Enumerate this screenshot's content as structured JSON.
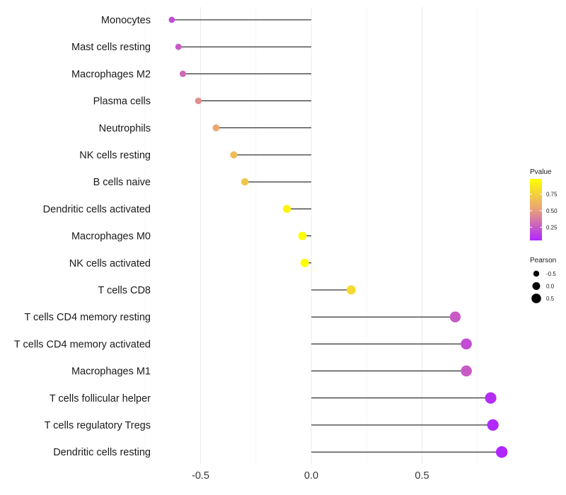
{
  "chart_data": {
    "type": "lollipop",
    "title": "",
    "xlabel": "",
    "ylabel": "",
    "xlim": [
      -0.72,
      0.9
    ],
    "xticks": [
      -0.5,
      0.0,
      0.5
    ],
    "xtick_labels": [
      "-0.5",
      "0.0",
      "0.5"
    ],
    "grid": true,
    "categories": [
      "Monocytes",
      "Mast cells resting",
      "Macrophages M2",
      "Plasma cells",
      "Neutrophils",
      "NK cells resting",
      "B cells naive",
      "Dendritic cells activated",
      "Macrophages M0",
      "NK cells activated",
      "T cells CD8",
      "T cells CD4 memory resting",
      "T cells CD4 memory activated",
      "Macrophages M1",
      "T cells follicular helper",
      "T cells regulatory  Tregs",
      "Dendritic cells resting"
    ],
    "values": [
      -0.63,
      -0.6,
      -0.58,
      -0.51,
      -0.43,
      -0.35,
      -0.3,
      -0.11,
      -0.04,
      -0.03,
      0.18,
      0.65,
      0.7,
      0.7,
      0.81,
      0.82,
      0.86
    ],
    "pvalues": [
      0.2,
      0.25,
      0.3,
      0.45,
      0.55,
      0.65,
      0.7,
      0.92,
      0.97,
      0.98,
      0.8,
      0.25,
      0.2,
      0.25,
      0.08,
      0.06,
      0.04
    ],
    "legend": {
      "position": "right",
      "color_title": "Pvalue",
      "color_ticks": [
        0.25,
        0.5,
        0.75
      ],
      "color_tick_labels": [
        "0.25",
        "0.50",
        "0.75"
      ],
      "color_range": [
        0.05,
        0.98
      ],
      "color_low": "#b026ff",
      "color_mid": "#e8a07a",
      "color_high": "#ffff00",
      "size_title": "Pearson",
      "size_values": [
        -0.5,
        0.0,
        0.5
      ],
      "size_labels": [
        "-0.5",
        "0.0",
        "0.5"
      ]
    }
  }
}
